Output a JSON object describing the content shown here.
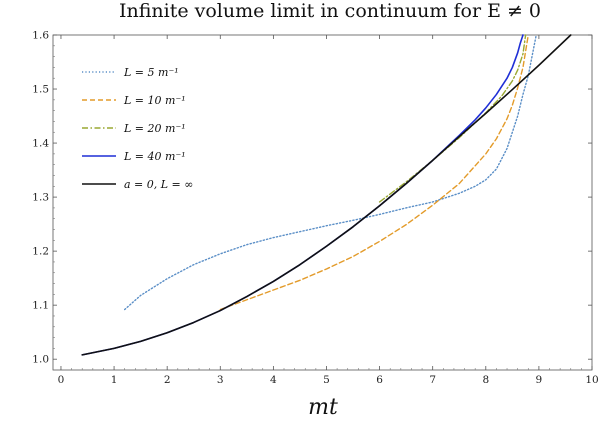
{
  "chart_data": {
    "type": "line",
    "title": "Infinite volume limit in continuum for E ≠ 0",
    "xlabel": "mt",
    "ylabel": "",
    "xlim": [
      -0.15,
      10
    ],
    "ylim": [
      0.98,
      1.6
    ],
    "xticks": [
      0,
      1,
      2,
      3,
      4,
      5,
      6,
      7,
      8,
      9,
      10
    ],
    "yticks": [
      1.0,
      1.1,
      1.2,
      1.3,
      1.4,
      1.5,
      1.6
    ],
    "ytick_labels": [
      "1.0",
      "1.1",
      "1.2",
      "1.3",
      "1.4",
      "1.5",
      "1.6"
    ],
    "legend_position": "top-left",
    "grid": false,
    "series": [
      {
        "name": "L = 5 m⁻¹",
        "color": "#5b8fc7",
        "dash": "dotted",
        "x": [
          1.2,
          1.5,
          2.0,
          2.5,
          3.0,
          3.5,
          4.0,
          4.5,
          5.0,
          5.5,
          6.0,
          6.5,
          7.0,
          7.5,
          7.8,
          8.0,
          8.2,
          8.4,
          8.6,
          8.7,
          8.8,
          8.85,
          8.9,
          8.95
        ],
        "y": [
          1.092,
          1.118,
          1.149,
          1.175,
          1.195,
          1.212,
          1.225,
          1.236,
          1.247,
          1.257,
          1.268,
          1.28,
          1.291,
          1.307,
          1.32,
          1.332,
          1.352,
          1.39,
          1.45,
          1.49,
          1.525,
          1.55,
          1.575,
          1.6
        ]
      },
      {
        "name": "L = 10 m⁻¹",
        "color": "#e39b2a",
        "dash": "dashed",
        "x": [
          3.0,
          3.5,
          4.0,
          4.5,
          5.0,
          5.5,
          6.0,
          6.5,
          7.0,
          7.5,
          8.0,
          8.2,
          8.4,
          8.5,
          8.6,
          8.7,
          8.75,
          8.8
        ],
        "y": [
          1.092,
          1.11,
          1.128,
          1.146,
          1.167,
          1.19,
          1.218,
          1.249,
          1.285,
          1.325,
          1.38,
          1.408,
          1.445,
          1.47,
          1.502,
          1.54,
          1.57,
          1.6
        ]
      },
      {
        "name": "L = 20 m⁻¹",
        "color": "#9aa832",
        "dash": "dashdot",
        "x": [
          6.0,
          6.5,
          7.0,
          7.5,
          8.0,
          8.3,
          8.5,
          8.6,
          8.7,
          8.75
        ],
        "y": [
          1.291,
          1.328,
          1.368,
          1.41,
          1.456,
          1.487,
          1.515,
          1.535,
          1.565,
          1.6
        ]
      },
      {
        "name": "L = 40 m⁻¹",
        "color": "#1f2fd6",
        "dash": "solid",
        "x": [
          0.4,
          1.0,
          1.5,
          2.0,
          2.5,
          3.0,
          3.5,
          4.0,
          4.5,
          5.0,
          5.5,
          6.0,
          6.5,
          7.0,
          7.5,
          7.8,
          8.0,
          8.2,
          8.4,
          8.5,
          8.6,
          8.65,
          8.7
        ],
        "y": [
          1.008,
          1.02,
          1.033,
          1.049,
          1.068,
          1.09,
          1.116,
          1.144,
          1.175,
          1.209,
          1.245,
          1.284,
          1.325,
          1.368,
          1.414,
          1.443,
          1.465,
          1.49,
          1.52,
          1.54,
          1.567,
          1.585,
          1.6
        ]
      },
      {
        "name": "a = 0, L = ∞",
        "color": "#111111",
        "dash": "solid",
        "x": [
          0.4,
          1.0,
          1.5,
          2.0,
          2.5,
          3.0,
          3.5,
          4.0,
          4.5,
          5.0,
          5.5,
          6.0,
          6.5,
          7.0,
          7.5,
          8.0,
          8.5,
          9.0,
          9.6
        ],
        "y": [
          1.008,
          1.02,
          1.033,
          1.049,
          1.068,
          1.09,
          1.116,
          1.144,
          1.175,
          1.209,
          1.245,
          1.284,
          1.325,
          1.368,
          1.412,
          1.455,
          1.499,
          1.544,
          1.6
        ]
      }
    ]
  }
}
